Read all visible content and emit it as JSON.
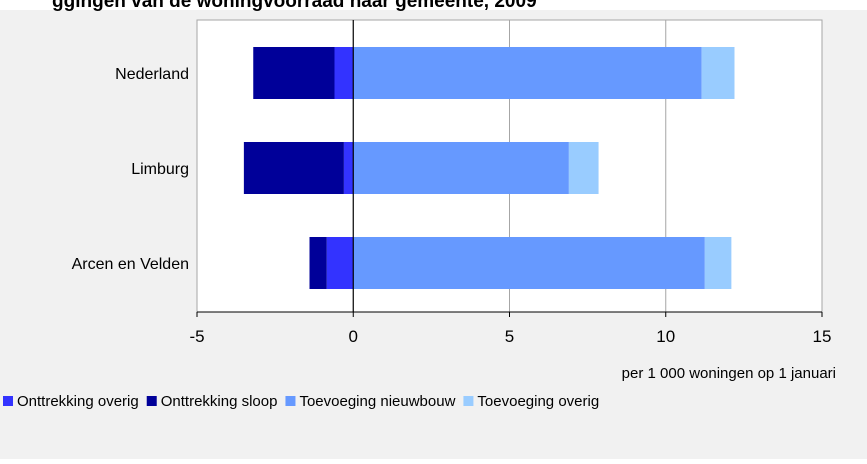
{
  "chart_data": {
    "type": "bar",
    "orientation": "horizontal",
    "stacked": true,
    "title": "ggingen van de woningvoorraad naar gemeente, 2009",
    "xlabel": "per 1 000 woningen op 1 januari",
    "xlim": [
      -5,
      15
    ],
    "xticks": [
      "-5",
      "0",
      "5",
      "10",
      "15"
    ],
    "grid": true,
    "legend_position": "bottom",
    "categories": [
      "Nederland",
      "Limburg",
      "Arcen en Velden"
    ],
    "series": [
      {
        "name": "Onttrekking overig",
        "values": [
          -0.6,
          -0.3,
          -0.85
        ],
        "color": "#3333ff"
      },
      {
        "name": "Onttrekking sloop",
        "values": [
          -2.6,
          -3.2,
          -0.55
        ],
        "color": "#000099"
      },
      {
        "name": "Toevoeging nieuwbouw",
        "values": [
          11.15,
          6.9,
          11.25
        ],
        "color": "#6699ff"
      },
      {
        "name": "Toevoeging overig",
        "values": [
          1.05,
          0.95,
          0.85
        ],
        "color": "#99ccff"
      }
    ]
  },
  "colors": {
    "panel": "#f1f1f1",
    "plot_bg": "#ffffff",
    "gridline": "#a6a6a6",
    "axis": "#000000"
  }
}
